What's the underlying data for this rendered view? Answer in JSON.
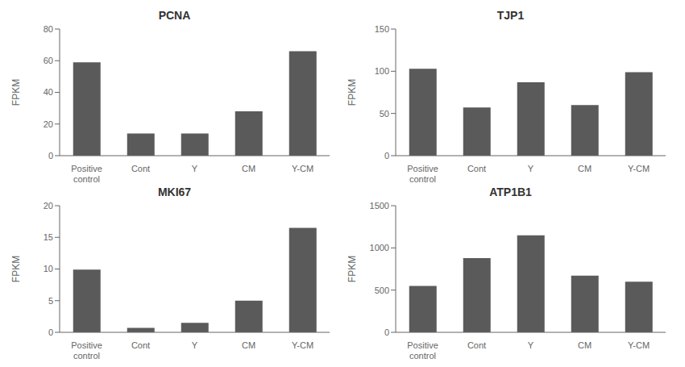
{
  "chart_data": [
    {
      "type": "bar",
      "title": "PCNA",
      "categories": [
        "Positive\ncontrol",
        "Cont",
        "Y",
        "CM",
        "Y-CM"
      ],
      "values": [
        59,
        14,
        14,
        28,
        66
      ],
      "color": "#5a5a5a",
      "ylabel": "FPKM",
      "ylim": [
        0,
        80
      ],
      "yticks": [
        0,
        20,
        40,
        60,
        80
      ],
      "grid": false
    },
    {
      "type": "bar",
      "title": "TJP1",
      "categories": [
        "Positive\ncontrol",
        "Cont",
        "Y",
        "CM",
        "Y-CM"
      ],
      "values": [
        103,
        57,
        87,
        60,
        99
      ],
      "color": "#5a5a5a",
      "ylabel": "FPKM",
      "ylim": [
        0,
        150
      ],
      "yticks": [
        0,
        50,
        100,
        150
      ],
      "grid": false
    },
    {
      "type": "bar",
      "title": "MKI67",
      "categories": [
        "Positive\ncontrol",
        "Cont",
        "Y",
        "CM",
        "Y-CM"
      ],
      "values": [
        9.9,
        0.7,
        1.5,
        5.0,
        16.5
      ],
      "color": "#5a5a5a",
      "ylabel": "FPKM",
      "ylim": [
        0,
        20
      ],
      "yticks": [
        0,
        5,
        10,
        15,
        20
      ],
      "grid": false
    },
    {
      "type": "bar",
      "title": "ATP1B1",
      "categories": [
        "Positive\ncontrol",
        "Cont",
        "Y",
        "CM",
        "Y-CM"
      ],
      "values": [
        550,
        880,
        1150,
        670,
        600
      ],
      "color": "#5a5a5a",
      "ylabel": "FPKM",
      "ylim": [
        0,
        1500
      ],
      "yticks": [
        0,
        500,
        1000,
        1500
      ],
      "grid": false
    }
  ]
}
